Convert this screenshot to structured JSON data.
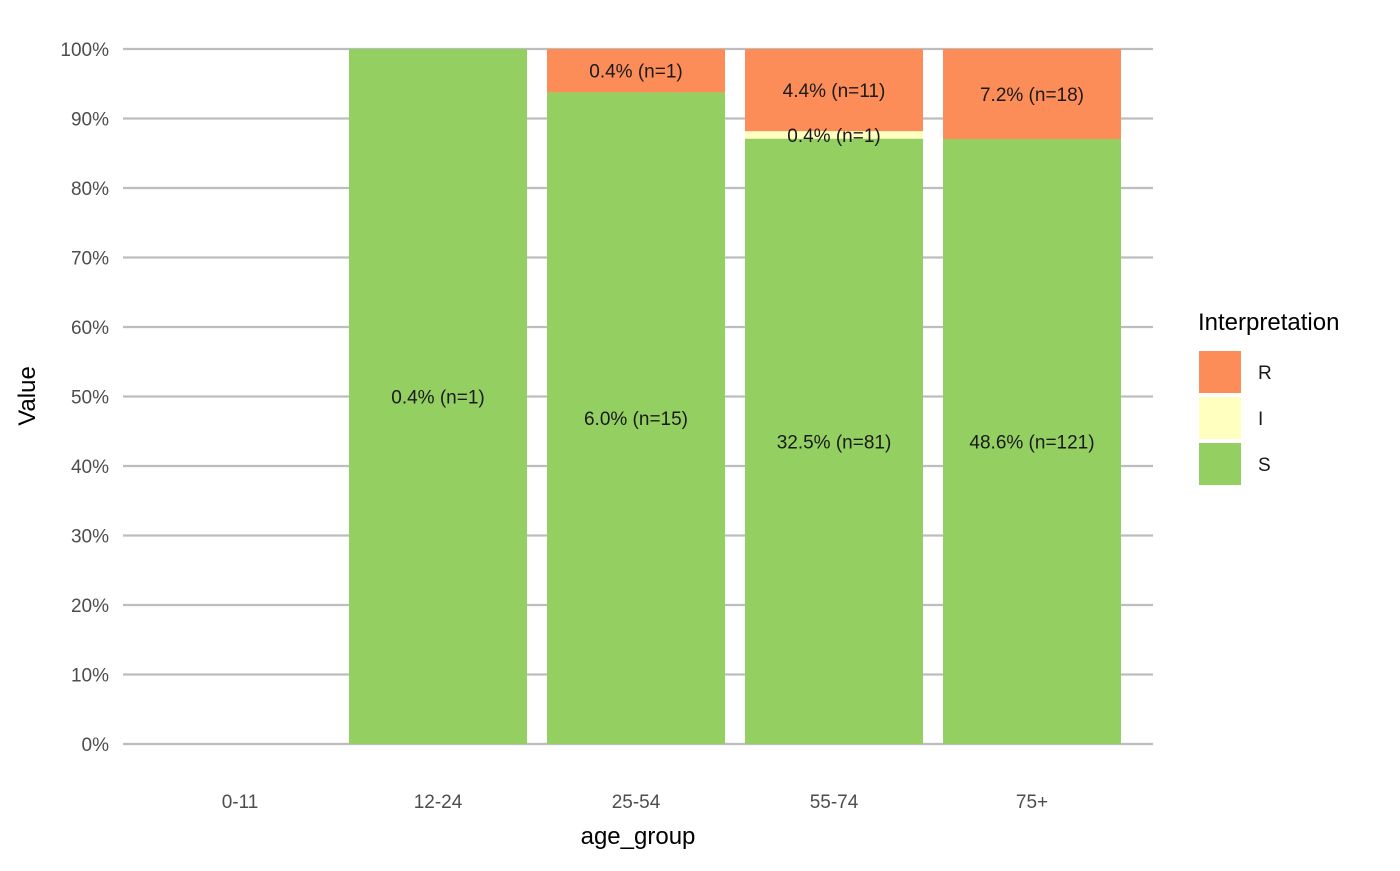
{
  "chart_data": {
    "type": "bar",
    "stacked": true,
    "xlabel": "age_group",
    "ylabel": "Value",
    "ylim": [
      0,
      1
    ],
    "y_ticks": [
      0,
      0.1,
      0.2,
      0.3,
      0.4,
      0.5,
      0.6,
      0.7,
      0.8,
      0.9,
      1.0
    ],
    "y_tick_labels": [
      "0%",
      "10%",
      "20%",
      "30%",
      "40%",
      "50%",
      "60%",
      "70%",
      "80%",
      "90%",
      "100%"
    ],
    "grid": "horizontal major lines only",
    "categories": [
      "0-11",
      "12-24",
      "25-54",
      "55-74",
      "75+"
    ],
    "series": [
      {
        "name": "S",
        "color": "#93cf61",
        "values": [
          0,
          1.0,
          0.9375,
          0.871,
          0.8705
        ],
        "labels": [
          "",
          "0.4% (n=1)",
          "6.0% (n=15)",
          "32.5% (n=81)",
          "48.6% (n=121)"
        ]
      },
      {
        "name": "I",
        "color": "#ffffbf",
        "values": [
          0,
          0,
          0,
          0.0108,
          0
        ],
        "labels": [
          "",
          "",
          "",
          "0.4% (n=1)",
          ""
        ]
      },
      {
        "name": "R",
        "color": "#fc8d59",
        "values": [
          0,
          0,
          0.0625,
          0.1182,
          0.1295
        ],
        "labels": [
          "",
          "",
          "0.4% (n=1)",
          "4.4% (n=11)",
          "7.2% (n=18)"
        ]
      }
    ],
    "legend": {
      "title": "Interpretation",
      "position": "right",
      "items": [
        {
          "name": "R",
          "color": "#fc8d59"
        },
        {
          "name": "I",
          "color": "#ffffbf"
        },
        {
          "name": "S",
          "color": "#93cf61"
        }
      ]
    }
  }
}
